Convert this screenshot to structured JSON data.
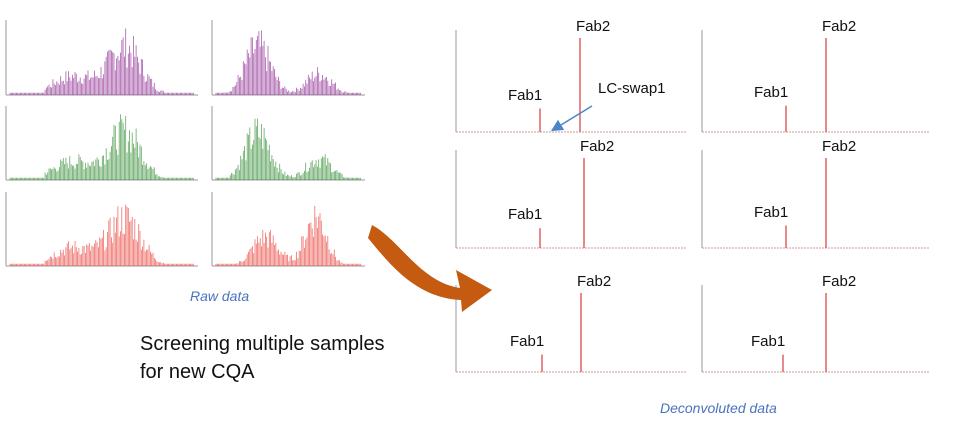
{
  "raw": {
    "caption": "Raw data",
    "colors": [
      "#8e2a92",
      "#2f8a2f",
      "#e8403a"
    ],
    "profiles": [
      "left-skewed",
      "bimodal"
    ]
  },
  "main_text": [
    "Screening multiple samples",
    "for new CQA"
  ],
  "arrow_color": "#c55a11",
  "deconvoluted": {
    "caption": "Deconvoluted data",
    "peak_color": "#e06060",
    "fab1_label": "Fab1",
    "fab2_label": "Fab2",
    "annotation": "LC-swap1",
    "panels": [
      {
        "fab1": 25,
        "fab2": 100
      },
      {
        "fab1": 28,
        "fab2": 100
      },
      {
        "fab1": 22,
        "fab2": 100
      },
      {
        "fab1": 25,
        "fab2": 100
      },
      {
        "fab1": 22,
        "fab2": 100
      },
      {
        "fab1": 22,
        "fab2": 100
      }
    ]
  }
}
